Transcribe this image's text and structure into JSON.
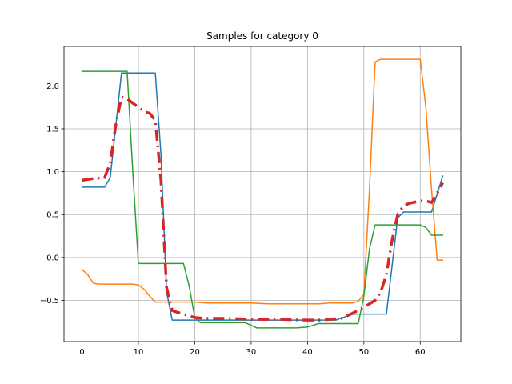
{
  "chart_data": {
    "type": "line",
    "title": "Samples for category 0",
    "xlabel": "",
    "ylabel": "",
    "xlim": [
      -3.2,
      67.2
    ],
    "ylim": [
      -0.98,
      2.46
    ],
    "xticks": [
      0,
      10,
      20,
      30,
      40,
      50,
      60
    ],
    "yticks": [
      -0.5,
      0.0,
      0.5,
      1.0,
      1.5,
      2.0
    ],
    "ytick_labels": [
      "−0.5",
      "0.0",
      "0.5",
      "1.0",
      "1.5",
      "2.0"
    ],
    "grid": true,
    "legend": "none",
    "series": [
      {
        "color": "#1f77b4",
        "style": "solid",
        "points": [
          [
            0,
            0.82
          ],
          [
            2,
            0.82
          ],
          [
            4,
            0.82
          ],
          [
            5,
            0.93
          ],
          [
            7,
            2.15
          ],
          [
            9,
            2.15
          ],
          [
            11,
            2.15
          ],
          [
            13,
            2.15
          ],
          [
            14,
            1.2
          ],
          [
            15,
            -0.4
          ],
          [
            16,
            -0.73
          ],
          [
            18,
            -0.73
          ],
          [
            20,
            -0.73
          ],
          [
            22,
            -0.73
          ],
          [
            30,
            -0.73
          ],
          [
            40,
            -0.73
          ],
          [
            45,
            -0.73
          ],
          [
            48,
            -0.66
          ],
          [
            50,
            -0.66
          ],
          [
            52,
            -0.66
          ],
          [
            54,
            -0.66
          ],
          [
            56,
            0.46
          ],
          [
            57,
            0.53
          ],
          [
            60,
            0.53
          ],
          [
            62,
            0.53
          ],
          [
            64,
            0.95
          ]
        ]
      },
      {
        "color": "#ff7f0e",
        "style": "solid",
        "points": [
          [
            0,
            -0.14
          ],
          [
            1,
            -0.2
          ],
          [
            2,
            -0.3
          ],
          [
            3,
            -0.31
          ],
          [
            5,
            -0.31
          ],
          [
            7,
            -0.31
          ],
          [
            9,
            -0.31
          ],
          [
            10,
            -0.32
          ],
          [
            11,
            -0.37
          ],
          [
            12,
            -0.45
          ],
          [
            13,
            -0.52
          ],
          [
            15,
            -0.52
          ],
          [
            20,
            -0.52
          ],
          [
            22,
            -0.53
          ],
          [
            30,
            -0.53
          ],
          [
            33,
            -0.54
          ],
          [
            40,
            -0.54
          ],
          [
            42,
            -0.54
          ],
          [
            44,
            -0.53
          ],
          [
            48,
            -0.53
          ],
          [
            49,
            -0.51
          ],
          [
            50,
            -0.43
          ],
          [
            51,
            0.8
          ],
          [
            52,
            2.28
          ],
          [
            53,
            2.31
          ],
          [
            55,
            2.31
          ],
          [
            57,
            2.31
          ],
          [
            60,
            2.31
          ],
          [
            61,
            1.75
          ],
          [
            62,
            0.8
          ],
          [
            63,
            -0.03
          ],
          [
            64,
            -0.03
          ]
        ]
      },
      {
        "color": "#2ca02c",
        "style": "solid",
        "points": [
          [
            0,
            2.17
          ],
          [
            2,
            2.17
          ],
          [
            4,
            2.17
          ],
          [
            6,
            2.17
          ],
          [
            8,
            2.17
          ],
          [
            9,
            1.0
          ],
          [
            10,
            -0.07
          ],
          [
            12,
            -0.07
          ],
          [
            14,
            -0.07
          ],
          [
            16,
            -0.07
          ],
          [
            18,
            -0.07
          ],
          [
            19,
            -0.33
          ],
          [
            20,
            -0.7
          ],
          [
            21,
            -0.76
          ],
          [
            23,
            -0.76
          ],
          [
            25,
            -0.76
          ],
          [
            29,
            -0.76
          ],
          [
            31,
            -0.82
          ],
          [
            35,
            -0.82
          ],
          [
            38,
            -0.82
          ],
          [
            40,
            -0.81
          ],
          [
            42,
            -0.77
          ],
          [
            44,
            -0.77
          ],
          [
            47,
            -0.77
          ],
          [
            49,
            -0.77
          ],
          [
            50,
            -0.45
          ],
          [
            51,
            0.1
          ],
          [
            52,
            0.38
          ],
          [
            55,
            0.38
          ],
          [
            58,
            0.38
          ],
          [
            60,
            0.38
          ],
          [
            61,
            0.35
          ],
          [
            62,
            0.26
          ],
          [
            63,
            0.26
          ],
          [
            64,
            0.26
          ]
        ]
      },
      {
        "color": "#d62728",
        "style": "dashdot",
        "points": [
          [
            0,
            0.9
          ],
          [
            1,
            0.91
          ],
          [
            2,
            0.92
          ],
          [
            4,
            0.93
          ],
          [
            5,
            1.1
          ],
          [
            6,
            1.55
          ],
          [
            7,
            1.87
          ],
          [
            8,
            1.85
          ],
          [
            9,
            1.8
          ],
          [
            10,
            1.75
          ],
          [
            11,
            1.7
          ],
          [
            12,
            1.68
          ],
          [
            13,
            1.6
          ],
          [
            14,
            0.9
          ],
          [
            15,
            -0.35
          ],
          [
            16,
            -0.62
          ],
          [
            18,
            -0.66
          ],
          [
            20,
            -0.7
          ],
          [
            22,
            -0.71
          ],
          [
            26,
            -0.71
          ],
          [
            30,
            -0.72
          ],
          [
            35,
            -0.72
          ],
          [
            40,
            -0.73
          ],
          [
            42,
            -0.73
          ],
          [
            46,
            -0.71
          ],
          [
            48,
            -0.65
          ],
          [
            50,
            -0.58
          ],
          [
            52,
            -0.5
          ],
          [
            53,
            -0.4
          ],
          [
            54,
            -0.2
          ],
          [
            55,
            0.2
          ],
          [
            56,
            0.5
          ],
          [
            57,
            0.6
          ],
          [
            58,
            0.63
          ],
          [
            60,
            0.66
          ],
          [
            61,
            0.66
          ],
          [
            62,
            0.64
          ],
          [
            63,
            0.75
          ],
          [
            64,
            0.87
          ]
        ]
      }
    ],
    "colors": {
      "axes": "#000000",
      "grid": "#b0b0b0"
    }
  }
}
